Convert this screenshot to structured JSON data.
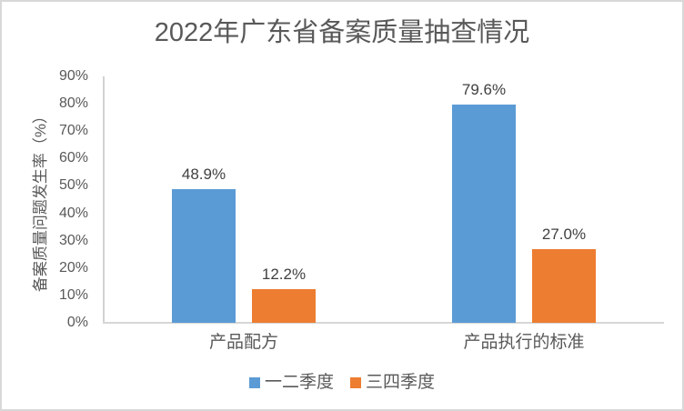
{
  "chart_data": {
    "type": "bar",
    "title": "2022年广东省备案质量抽查情况",
    "ylabel": "备案质量问题发生率（%）",
    "xlabel": "",
    "categories": [
      "产品配方",
      "产品执行的标准"
    ],
    "series": [
      {
        "name": "一二季度",
        "color": "#5B9BD5",
        "values": [
          48.9,
          79.6
        ],
        "labels": [
          "48.9%",
          "79.6%"
        ]
      },
      {
        "name": "三四季度",
        "color": "#ED7D31",
        "values": [
          12.2,
          27.0
        ],
        "labels": [
          "12.2%",
          "27.0%"
        ]
      }
    ],
    "y_ticks": [
      "90%",
      "80%",
      "70%",
      "60%",
      "50%",
      "40%",
      "30%",
      "20%",
      "10%",
      "0%"
    ],
    "ylim": [
      0,
      90
    ],
    "grid": false,
    "legend_position": "bottom"
  },
  "colors": {
    "title_text": "#595959",
    "axis_text": "#595959",
    "data_label_text": "#404040",
    "axis_line": "#d6d6d6",
    "page_border": "#d8d8d8",
    "background": "#ffffff"
  }
}
